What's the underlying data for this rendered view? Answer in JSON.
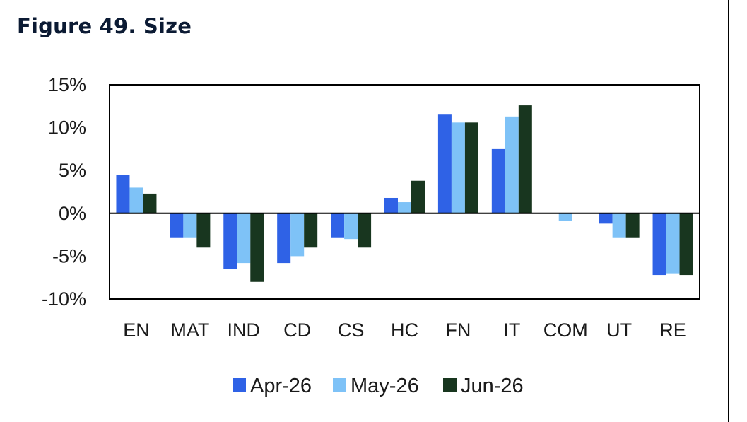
{
  "figure_title": "Figure 49. Size",
  "colors": {
    "apr": "#2f62e6",
    "may": "#7ec2f7",
    "jun": "#18361f"
  },
  "chart_data": {
    "type": "bar",
    "title": "Figure 49. Size",
    "xlabel": "",
    "ylabel": "",
    "categories": [
      "EN",
      "MAT",
      "IND",
      "CD",
      "CS",
      "HC",
      "FN",
      "IT",
      "COM",
      "UT",
      "RE"
    ],
    "series": [
      {
        "name": "Apr-26",
        "values": [
          4.5,
          -2.8,
          -6.5,
          -5.8,
          -2.8,
          1.8,
          11.6,
          7.5,
          0.0,
          -1.2,
          -7.2
        ]
      },
      {
        "name": "May-26",
        "values": [
          3.0,
          -2.8,
          -5.8,
          -5.0,
          -3.0,
          1.3,
          10.6,
          11.3,
          -0.9,
          -2.8,
          -7.0
        ]
      },
      {
        "name": "Jun-26",
        "values": [
          2.3,
          -4.0,
          -8.0,
          -4.0,
          -4.0,
          3.8,
          10.6,
          12.6,
          0.0,
          -2.8,
          -7.2
        ]
      }
    ],
    "y_ticks": [
      "15%",
      "10%",
      "5%",
      "0%",
      "-5%",
      "-10%"
    ],
    "y_tick_values": [
      15,
      10,
      5,
      0,
      -5,
      -10
    ],
    "ylim": [
      -10,
      15
    ],
    "grid": false,
    "legend_position": "bottom"
  }
}
